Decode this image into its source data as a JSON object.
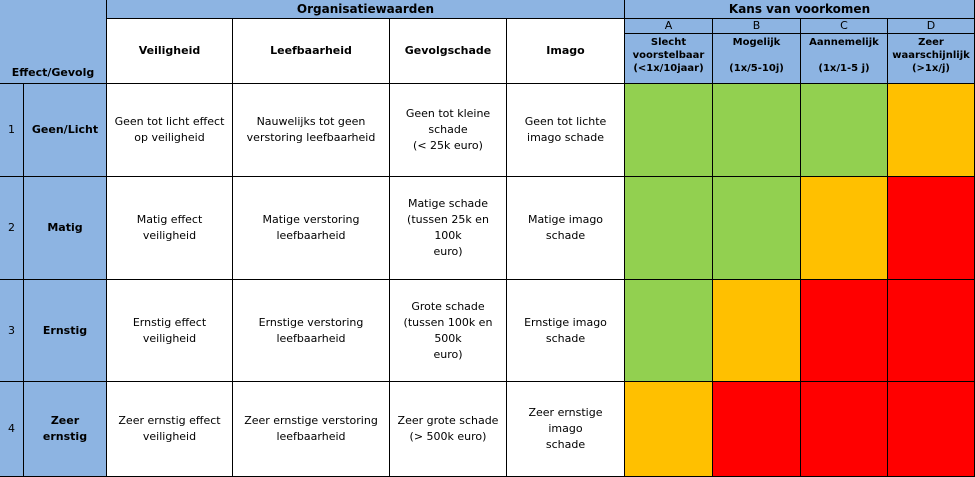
{
  "header": {
    "effect_gevolg": "Effect/Gevolg",
    "organisatiewaarden": "Organisatiewaarden",
    "kans_van_voorkomen": "Kans van voorkomen"
  },
  "value_columns": [
    "Veiligheid",
    "Leefbaarheid",
    "Gevolgschade",
    "Imago"
  ],
  "likelihood_columns": [
    {
      "letter": "A",
      "label": "Slecht\nvoorstelbaar\n(<1x/10jaar)"
    },
    {
      "letter": "B",
      "label": "Mogelijk\n\n(1x/5-10j)"
    },
    {
      "letter": "C",
      "label": "Aannemelijk\n\n(1x/1-5 j)"
    },
    {
      "letter": "D",
      "label": "Zeer\nwaarschijnlijk\n(>1x/j)"
    }
  ],
  "rows": [
    {
      "number": "1",
      "severity": "Geen/Licht",
      "values": [
        "Geen tot licht effect\nop veiligheid",
        "Nauwelijks tot geen\nverstoring leefbaarheid",
        "Geen tot kleine\nschade\n(< 25k euro)",
        "Geen tot lichte\nimago schade"
      ],
      "levels": [
        "green",
        "green",
        "green",
        "yellow"
      ]
    },
    {
      "number": "2",
      "severity": "Matig",
      "values": [
        "Matig effect\nveiligheid",
        "Matige verstoring\nleefbaarheid",
        "Matige schade\n(tussen 25k en 100k\neuro)",
        "Matige imago\nschade"
      ],
      "levels": [
        "green",
        "green",
        "yellow",
        "red"
      ]
    },
    {
      "number": "3",
      "severity": "Ernstig",
      "values": [
        "Ernstig effect\nveiligheid",
        "Ernstige verstoring\nleefbaarheid",
        "Grote schade\n(tussen 100k en 500k\neuro)",
        "Ernstige imago\nschade"
      ],
      "levels": [
        "green",
        "yellow",
        "red",
        "red"
      ]
    },
    {
      "number": "4",
      "severity": "Zeer ernstig",
      "values": [
        "Zeer ernstig effect\nveiligheid",
        "Zeer ernstige verstoring\nleefbaarheid",
        "Zeer grote schade\n(> 500k euro)",
        "Zeer ernstige imago\nschade"
      ],
      "levels": [
        "yellow",
        "red",
        "red",
        "red"
      ]
    }
  ],
  "level_colors": {
    "green": "#92d050",
    "yellow": "#ffc000",
    "red": "#ff0000",
    "header": "#8db4e2"
  }
}
